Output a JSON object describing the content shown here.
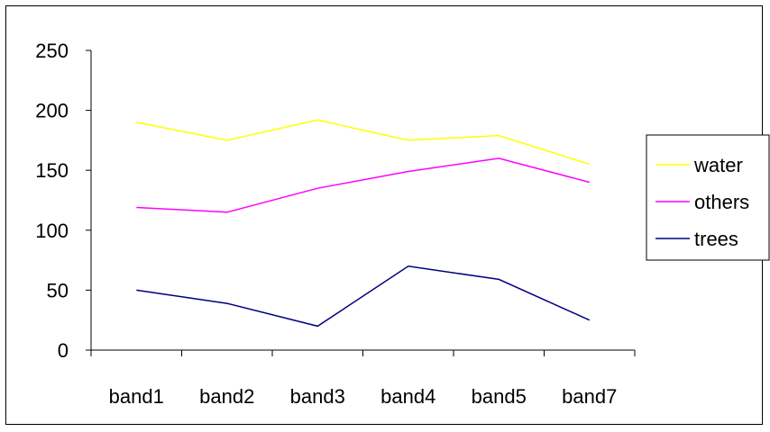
{
  "chart_data": {
    "type": "line",
    "categories": [
      "band1",
      "band2",
      "band3",
      "band4",
      "band5",
      "band7"
    ],
    "series": [
      {
        "name": "water",
        "values": [
          190,
          175,
          192,
          175,
          179,
          155
        ],
        "color": "#ffff00"
      },
      {
        "name": "others",
        "values": [
          119,
          115,
          135,
          149,
          160,
          140
        ],
        "color": "#ff00ff"
      },
      {
        "name": "trees",
        "values": [
          50,
          39,
          20,
          70,
          59,
          25
        ],
        "color": "#000080"
      }
    ],
    "yticks": [
      "0",
      "50",
      "100",
      "150",
      "200",
      "250"
    ],
    "ylim": [
      0,
      250
    ],
    "grid": false,
    "legend_position": "right"
  }
}
